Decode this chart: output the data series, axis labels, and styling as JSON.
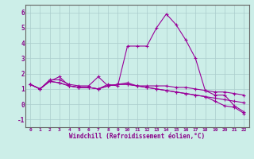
{
  "xlabel": "Windchill (Refroidissement éolien,°C)",
  "ylabel": "",
  "bg_color": "#cceee8",
  "grid_color": "#aacccc",
  "line_color": "#990099",
  "xlim": [
    -0.5,
    22.5
  ],
  "ylim": [
    -1.5,
    6.5
  ],
  "xticks": [
    0,
    1,
    2,
    3,
    4,
    5,
    6,
    7,
    8,
    9,
    10,
    11,
    12,
    13,
    14,
    15,
    16,
    17,
    18,
    19,
    20,
    21,
    22
  ],
  "yticks": [
    -1,
    0,
    1,
    2,
    3,
    4,
    5,
    6
  ],
  "series": [
    [
      1.3,
      1.0,
      1.5,
      1.8,
      1.2,
      1.1,
      1.1,
      1.0,
      1.3,
      1.2,
      3.8,
      3.8,
      3.8,
      5.0,
      5.9,
      5.2,
      4.2,
      3.0,
      0.9,
      0.6,
      0.6,
      -0.1,
      -0.5
    ],
    [
      1.3,
      1.0,
      1.6,
      1.6,
      1.3,
      1.2,
      1.2,
      1.8,
      1.2,
      1.3,
      1.4,
      1.2,
      1.2,
      1.2,
      1.2,
      1.1,
      1.1,
      1.0,
      0.9,
      0.8,
      0.8,
      0.7,
      0.6
    ],
    [
      1.3,
      1.0,
      1.5,
      1.4,
      1.2,
      1.1,
      1.1,
      1.0,
      1.2,
      1.3,
      1.3,
      1.2,
      1.1,
      1.0,
      0.9,
      0.8,
      0.7,
      0.6,
      0.5,
      0.4,
      0.3,
      0.2,
      0.1
    ],
    [
      1.3,
      1.0,
      1.5,
      1.4,
      1.2,
      1.1,
      1.1,
      1.0,
      1.2,
      1.3,
      1.3,
      1.2,
      1.1,
      1.0,
      0.9,
      0.8,
      0.7,
      0.6,
      0.5,
      0.2,
      -0.1,
      -0.2,
      -0.6
    ]
  ]
}
